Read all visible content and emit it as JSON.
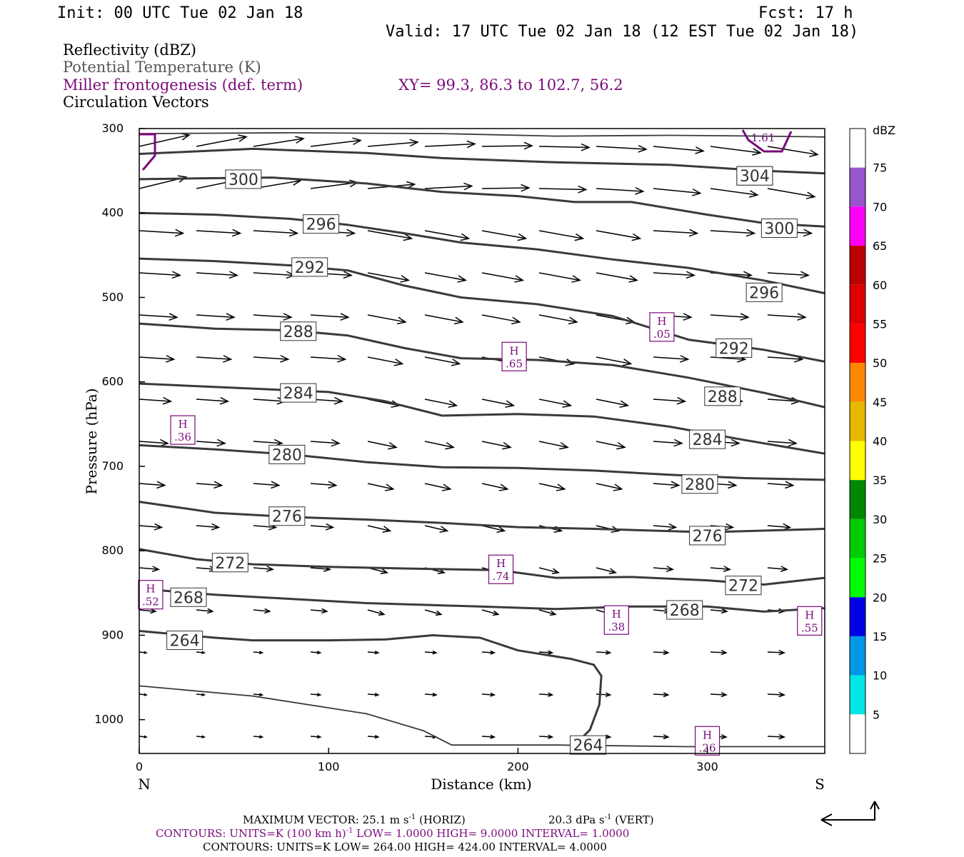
{
  "header": {
    "init": "Init: 00 UTC Tue 02 Jan 18",
    "fcst": "Fcst:   17 h",
    "valid": "Valid: 17 UTC Tue 02 Jan 18 (12 EST Tue 02 Jan 18)"
  },
  "legend": {
    "reflectivity": "Reflectivity (dBZ)",
    "theta": "Potential Temperature (K)",
    "frontogenesis": "Miller frontogenesis (def. term)",
    "xy": "XY=  99.3, 86.3 to 102.7, 56.2",
    "circulation": "Circulation Vectors"
  },
  "colors": {
    "theta": "#3a3a3a",
    "frontogenesis": "#7a0a7a",
    "vector": "#000000"
  },
  "colorbar": {
    "unit": "dBZ",
    "labels": [
      "5",
      "10",
      "15",
      "20",
      "25",
      "30",
      "35",
      "40",
      "45",
      "50",
      "55",
      "60",
      "65",
      "70",
      "75"
    ],
    "colors": [
      "#ffffff",
      "#00e6e6",
      "#0099e6",
      "#0000e6",
      "#00ff00",
      "#00cc00",
      "#008800",
      "#ffff00",
      "#e6b800",
      "#ff8800",
      "#ff0000",
      "#dd0000",
      "#bb0000",
      "#ff00ff",
      "#9955cc",
      "#ffffff"
    ]
  },
  "footer": {
    "maxvec": "MAXIMUM VECTOR:  25.1 m s",
    "maxvec_sup": "-1",
    "maxvec_h": " (HORIZ)",
    "maxvec_v": "20.3 dPa s",
    "maxvec_v_sup": "-1",
    "maxvec_v2": " (VERT)",
    "cont1_a": "CONTOURS:  UNITS=K (100 km h)",
    "cont1_sup": "-1",
    "cont1_b": "  LOW=  1.0000        HIGH=  9.0000       INTERVAL=   1.0000",
    "cont2": "CONTOURS:  UNITS=K  LOW=  264.00        HIGH=  424.00        INTERVAL=   4.0000"
  },
  "chart_data": {
    "type": "cross-section",
    "xlabel": "Distance (km)",
    "ylabel": "Pressure (hPa)",
    "xlim": [
      0,
      362
    ],
    "ylim": [
      1040,
      300
    ],
    "x_ticks": [
      0,
      100,
      200,
      300
    ],
    "y_ticks": [
      300,
      400,
      500,
      600,
      700,
      800,
      900,
      1000
    ],
    "x_end_labels": {
      "left": "N",
      "right": "S"
    },
    "theta_contours": [
      {
        "value": "264",
        "points": [
          [
            0,
            895
          ],
          [
            40,
            903
          ],
          [
            60,
            906
          ],
          [
            100,
            906
          ],
          [
            130,
            905
          ],
          [
            155,
            900
          ],
          [
            180,
            903
          ],
          [
            200,
            918
          ],
          [
            228,
            928
          ],
          [
            240,
            935
          ],
          [
            244,
            948
          ],
          [
            243,
            982
          ],
          [
            238,
            1012
          ],
          [
            230,
            1030
          ]
        ],
        "label_at": [
          24,
          906
        ]
      },
      {
        "value": "268",
        "points": [
          [
            0,
            845
          ],
          [
            40,
            852
          ],
          [
            80,
            857
          ],
          [
            120,
            862
          ],
          [
            150,
            864
          ],
          [
            180,
            866
          ],
          [
            220,
            869
          ],
          [
            260,
            866
          ],
          [
            300,
            866
          ],
          [
            330,
            872
          ],
          [
            362,
            868
          ]
        ],
        "label_at": [
          26,
          855
        ]
      },
      {
        "value": "272",
        "points": [
          [
            0,
            798
          ],
          [
            30,
            810
          ],
          [
            60,
            816
          ],
          [
            100,
            819
          ],
          [
            140,
            821
          ],
          [
            190,
            823
          ],
          [
            220,
            832
          ],
          [
            260,
            831
          ],
          [
            300,
            835
          ],
          [
            330,
            840
          ],
          [
            362,
            832
          ]
        ],
        "label_at": [
          48,
          814
        ]
      },
      {
        "value": "276",
        "points": [
          [
            0,
            742
          ],
          [
            40,
            755
          ],
          [
            80,
            760
          ],
          [
            120,
            763
          ],
          [
            160,
            767
          ],
          [
            200,
            772
          ],
          [
            240,
            774
          ],
          [
            300,
            778
          ],
          [
            362,
            774
          ]
        ],
        "label_at": [
          78,
          759
        ]
      },
      {
        "value": "280",
        "points": [
          [
            0,
            675
          ],
          [
            40,
            680
          ],
          [
            80,
            686
          ],
          [
            120,
            695
          ],
          [
            160,
            701
          ],
          [
            200,
            702
          ],
          [
            240,
            705
          ],
          [
            280,
            710
          ],
          [
            320,
            714
          ],
          [
            362,
            716
          ]
        ],
        "label_at": [
          78,
          686
        ]
      },
      {
        "value": "284",
        "points": [
          [
            0,
            602
          ],
          [
            50,
            607
          ],
          [
            100,
            612
          ],
          [
            130,
            623
          ],
          [
            160,
            640
          ],
          [
            200,
            638
          ],
          [
            240,
            641
          ],
          [
            280,
            653
          ],
          [
            320,
            669
          ],
          [
            362,
            685
          ]
        ],
        "label_at": [
          84,
          613
        ]
      },
      {
        "value": "288",
        "points": [
          [
            0,
            531
          ],
          [
            40,
            537
          ],
          [
            80,
            539
          ],
          [
            110,
            545
          ],
          [
            140,
            560
          ],
          [
            170,
            572
          ],
          [
            210,
            574
          ],
          [
            250,
            580
          ],
          [
            290,
            595
          ],
          [
            330,
            613
          ],
          [
            362,
            630
          ]
        ],
        "label_at": [
          84,
          540
        ]
      },
      {
        "value": "292",
        "points": [
          [
            0,
            454
          ],
          [
            40,
            457
          ],
          [
            80,
            462
          ],
          [
            110,
            468
          ],
          [
            140,
            486
          ],
          [
            170,
            500
          ],
          [
            210,
            508
          ],
          [
            250,
            522
          ],
          [
            290,
            550
          ],
          [
            330,
            562
          ],
          [
            362,
            576
          ]
        ],
        "label_at": [
          90,
          464
        ]
      },
      {
        "value": "296",
        "points": [
          [
            0,
            400
          ],
          [
            40,
            402
          ],
          [
            80,
            407
          ],
          [
            110,
            414
          ],
          [
            140,
            424
          ],
          [
            170,
            435
          ],
          [
            210,
            443
          ],
          [
            250,
            455
          ],
          [
            290,
            465
          ],
          [
            330,
            480
          ],
          [
            362,
            495
          ]
        ],
        "label_at": [
          96,
          413
        ]
      },
      {
        "value": "300",
        "points": [
          [
            0,
            360
          ],
          [
            30,
            359
          ],
          [
            70,
            358
          ],
          [
            120,
            365
          ],
          [
            160,
            375
          ],
          [
            200,
            380
          ],
          [
            230,
            387
          ],
          [
            260,
            387
          ],
          [
            300,
            402
          ],
          [
            330,
            412
          ],
          [
            362,
            416
          ]
        ],
        "label_at": [
          55,
          360
        ]
      },
      {
        "value": "304",
        "points": [
          [
            0,
            330
          ],
          [
            60,
            324
          ],
          [
            120,
            329
          ],
          [
            160,
            335
          ],
          [
            220,
            340
          ],
          [
            280,
            343
          ],
          [
            330,
            350
          ],
          [
            362,
            353
          ]
        ],
        "label_at": [
          325,
          356
        ]
      },
      {
        "value": "",
        "points": [
          [
            0,
            306
          ],
          [
            80,
            305
          ],
          [
            160,
            306
          ],
          [
            220,
            309
          ],
          [
            280,
            308
          ],
          [
            330,
            309
          ],
          [
            362,
            310
          ]
        ],
        "label_at": null
      },
      {
        "value": "",
        "points": [
          [
            0,
            960
          ],
          [
            60,
            972
          ],
          [
            120,
            993
          ],
          [
            150,
            1013
          ],
          [
            165,
            1030
          ],
          [
            220,
            1030
          ],
          [
            290,
            1032
          ],
          [
            362,
            1032
          ]
        ],
        "label_at": null
      }
    ],
    "theta_labels_extra": [
      {
        "value": "304",
        "at": [
          325,
          356
        ]
      },
      {
        "value": "300",
        "at": [
          338,
          418
        ]
      },
      {
        "value": "296",
        "at": [
          330,
          494
        ]
      },
      {
        "value": "292",
        "at": [
          314,
          560
        ]
      },
      {
        "value": "288",
        "at": [
          308,
          617
        ]
      },
      {
        "value": "284",
        "at": [
          300,
          668
        ]
      },
      {
        "value": "280",
        "at": [
          296,
          721
        ]
      },
      {
        "value": "276",
        "at": [
          300,
          782
        ]
      },
      {
        "value": "272",
        "at": [
          319,
          841
        ]
      },
      {
        "value": "268",
        "at": [
          288,
          870
        ]
      },
      {
        "value": "264",
        "at": [
          237,
          1030
        ]
      }
    ],
    "frontogenesis_maxima": [
      {
        "label": "H",
        "value": ".36",
        "at": [
          23,
          657
        ]
      },
      {
        "label": "H",
        "value": ".52",
        "at": [
          6,
          852
        ]
      },
      {
        "label": "H",
        "value": ".65",
        "at": [
          198,
          570
        ]
      },
      {
        "label": "H",
        "value": ".05",
        "at": [
          276,
          535
        ]
      },
      {
        "label": "H",
        "value": ".74",
        "at": [
          191,
          822
        ]
      },
      {
        "label": "H",
        "value": ".38",
        "at": [
          252,
          882
        ]
      },
      {
        "label": "H",
        "value": ".55",
        "at": [
          354,
          883
        ]
      },
      {
        "label": "H",
        "value": ".26",
        "at": [
          300,
          1025
        ]
      }
    ],
    "frontogenesis_contour_value": "1.61",
    "vectors_note": "circulation vectors shown as arrows"
  }
}
